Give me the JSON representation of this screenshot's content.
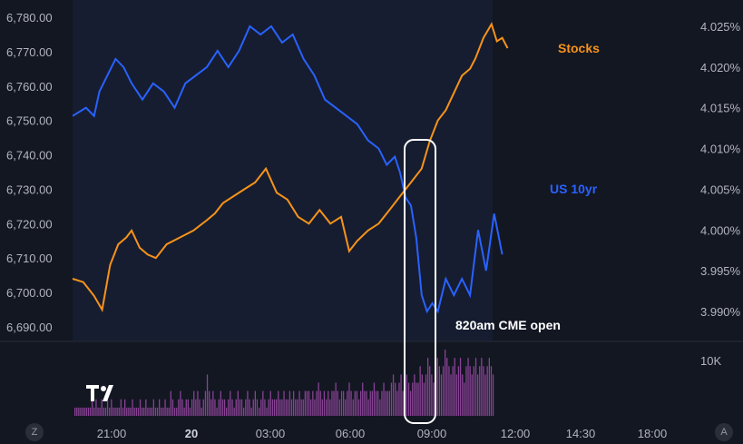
{
  "colors": {
    "background": "#131722",
    "stocks": "#f7931a",
    "us10yr": "#2962ff",
    "volume": "#9c4aa8",
    "highlight_box": "#ffffff"
  },
  "buttons": {
    "left": "Z",
    "right": "A"
  },
  "chart_data": {
    "type": "line",
    "x_ticks": [
      "21:00",
      "20",
      "03:00",
      "06:00",
      "09:00",
      "12:00",
      "14:30",
      "18:00"
    ],
    "x_tick_bold": "20",
    "left_axis": {
      "series": "Stocks",
      "ticks": [
        "6,780.00",
        "6,770.00",
        "6,760.00",
        "6,750.00",
        "6,740.00",
        "6,730.00",
        "6,720.00",
        "6,710.00",
        "6,700.00",
        "6,690.00"
      ],
      "range": [
        6690,
        6780
      ]
    },
    "right_axis": {
      "series": "US 10yr",
      "ticks": [
        "4.025%",
        "4.020%",
        "4.015%",
        "4.010%",
        "4.005%",
        "4.000%",
        "3.995%",
        "3.990%"
      ],
      "range": [
        3.99,
        4.025
      ]
    },
    "volume_axis": {
      "ticks": [
        "10K"
      ],
      "max": 10000
    },
    "series": [
      {
        "name": "Stocks",
        "axis": "left",
        "x_hours": [
          0,
          0.4,
          0.8,
          1.1,
          1.4,
          1.7,
          2.0,
          2.2,
          2.5,
          2.8,
          3.1,
          3.5,
          4.0,
          4.5,
          5.0,
          5.3,
          5.6,
          6.0,
          6.4,
          6.8,
          7.2,
          7.6,
          8.0,
          8.4,
          8.8,
          9.2,
          9.6,
          10.0,
          10.3,
          10.6,
          11.0,
          11.4,
          11.8,
          12.2,
          12.6,
          13.0,
          13.3,
          13.6,
          13.9,
          14.2,
          14.5,
          14.8,
          15.0,
          15.3,
          15.6,
          15.8,
          16.0,
          16.2
        ],
        "values": [
          6704,
          6703,
          6699,
          6695,
          6708,
          6714,
          6716,
          6718,
          6713,
          6711,
          6710,
          6714,
          6716,
          6718,
          6721,
          6723,
          6726,
          6728,
          6730,
          6732,
          6736,
          6729,
          6727,
          6722,
          6720,
          6724,
          6720,
          6722,
          6712,
          6715,
          6718,
          6720,
          6724,
          6728,
          6732,
          6736,
          6744,
          6750,
          6753,
          6758,
          6763,
          6765,
          6768,
          6774,
          6778,
          6773,
          6774,
          6771
        ]
      },
      {
        "name": "US 10yr",
        "axis": "right",
        "x_hours": [
          0,
          0.5,
          0.8,
          1.0,
          1.3,
          1.6,
          1.9,
          2.2,
          2.6,
          3.0,
          3.4,
          3.8,
          4.2,
          4.6,
          5.0,
          5.4,
          5.8,
          6.2,
          6.6,
          7.0,
          7.4,
          7.8,
          8.2,
          8.6,
          9.0,
          9.4,
          9.8,
          10.2,
          10.6,
          11.0,
          11.4,
          11.7,
          12.0,
          12.2,
          12.4,
          12.6,
          12.8,
          13.0,
          13.2,
          13.4,
          13.6,
          13.9,
          14.2,
          14.5,
          14.8,
          15.1,
          15.4,
          15.7,
          16.0
        ],
        "values": [
          4.014,
          4.015,
          4.014,
          4.017,
          4.019,
          4.021,
          4.02,
          4.018,
          4.016,
          4.018,
          4.017,
          4.015,
          4.018,
          4.019,
          4.02,
          4.022,
          4.02,
          4.022,
          4.025,
          4.024,
          4.025,
          4.023,
          4.024,
          4.021,
          4.019,
          4.016,
          4.015,
          4.014,
          4.013,
          4.011,
          4.01,
          4.008,
          4.009,
          4.007,
          4.004,
          4.003,
          3.999,
          3.992,
          3.99,
          3.991,
          3.99,
          3.994,
          3.992,
          3.994,
          3.992,
          4.0,
          3.995,
          4.002,
          3.997
        ]
      }
    ],
    "volume": [
      1,
      1,
      1,
      1,
      1,
      1,
      1,
      1,
      1,
      2,
      1,
      2,
      1,
      1,
      2,
      1,
      1,
      2,
      1,
      2,
      1,
      1,
      1,
      1,
      2,
      1,
      2,
      1,
      1,
      1,
      2,
      1,
      1,
      1,
      2,
      1,
      1,
      2,
      1,
      1,
      1,
      2,
      1,
      1,
      2,
      1,
      1,
      2,
      1,
      1,
      3,
      2,
      1,
      1,
      2,
      3,
      2,
      1,
      2,
      2,
      1,
      2,
      3,
      2,
      3,
      2,
      1,
      2,
      3,
      5,
      3,
      2,
      3,
      2,
      1,
      2,
      3,
      2,
      2,
      1,
      2,
      3,
      2,
      1,
      2,
      3,
      2,
      2,
      1,
      2,
      3,
      2,
      1,
      2,
      3,
      2,
      1,
      2,
      3,
      2,
      1,
      2,
      3,
      2,
      2,
      2,
      3,
      2,
      2,
      3,
      2,
      2,
      3,
      2,
      3,
      2,
      2,
      3,
      2,
      2,
      3,
      3,
      3,
      2,
      3,
      2,
      3,
      4,
      3,
      2,
      3,
      2,
      3,
      2,
      3,
      3,
      4,
      3,
      2,
      3,
      3,
      2,
      3,
      4,
      3,
      2,
      3,
      3,
      2,
      3,
      4,
      3,
      3,
      2,
      3,
      3,
      4,
      3,
      3,
      2,
      3,
      4,
      3,
      3,
      3,
      4,
      5,
      4,
      3,
      4,
      5,
      3,
      4,
      5,
      4,
      3,
      4,
      5,
      4,
      4,
      6,
      5,
      4,
      5,
      7,
      6,
      5,
      4,
      6,
      7,
      6,
      5,
      6,
      8,
      7,
      6,
      5,
      6,
      7,
      5,
      6,
      7,
      5,
      4,
      6,
      7,
      6,
      5,
      6,
      7,
      5,
      6,
      7,
      6,
      5,
      6,
      7,
      6,
      5
    ],
    "annotations": [
      {
        "text": "Stocks",
        "color": "#f7931a"
      },
      {
        "text": "US 10yr",
        "color": "#2962ff"
      },
      {
        "text": "820am CME open",
        "color": "#ffffff"
      }
    ]
  }
}
